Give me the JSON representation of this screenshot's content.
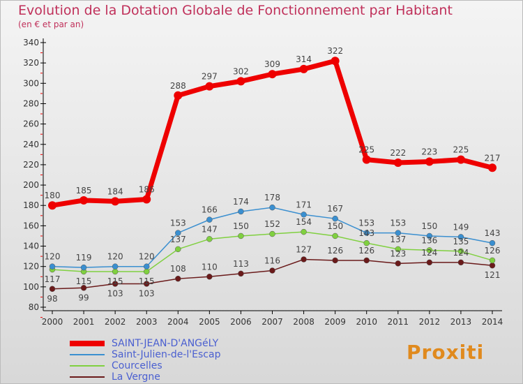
{
  "chart_data": {
    "type": "line",
    "title": "Evolution de la Dotation Globale de Fonctionnement par Habitant",
    "subtitle": "(en € et par an)",
    "x": [
      "2000",
      "2001",
      "2002",
      "2003",
      "2004",
      "2005",
      "2006",
      "2007",
      "2008",
      "2009",
      "2010",
      "2011",
      "2012",
      "2013",
      "2014"
    ],
    "ylim": [
      80,
      340
    ],
    "yticks": [
      80,
      100,
      120,
      140,
      160,
      180,
      200,
      220,
      240,
      260,
      280,
      300,
      320,
      340
    ],
    "series": [
      {
        "name": "SAINT-JEAN-D'ANGéLY",
        "color": "#ee0000",
        "values": [
          180,
          185,
          184,
          186,
          288,
          297,
          302,
          309,
          314,
          322,
          225,
          222,
          223,
          225,
          217
        ]
      },
      {
        "name": "Saint-Julien-de-l'Escap",
        "color": "#3a8fd0",
        "values": [
          120,
          119,
          120,
          120,
          153,
          166,
          174,
          178,
          171,
          167,
          153,
          153,
          150,
          149,
          143
        ]
      },
      {
        "name": "Courcelles",
        "color": "#80d040",
        "values": [
          117,
          115,
          115,
          115,
          137,
          147,
          150,
          152,
          154,
          150,
          143,
          137,
          136,
          135,
          126
        ]
      },
      {
        "name": "La Vergne",
        "color": "#6a1a1a",
        "values": [
          98,
          99,
          103,
          103,
          108,
          110,
          113,
          116,
          127,
          126,
          126,
          123,
          124,
          124,
          121
        ]
      }
    ],
    "legend_position": "bottom-left"
  },
  "logo": "Proxiti"
}
